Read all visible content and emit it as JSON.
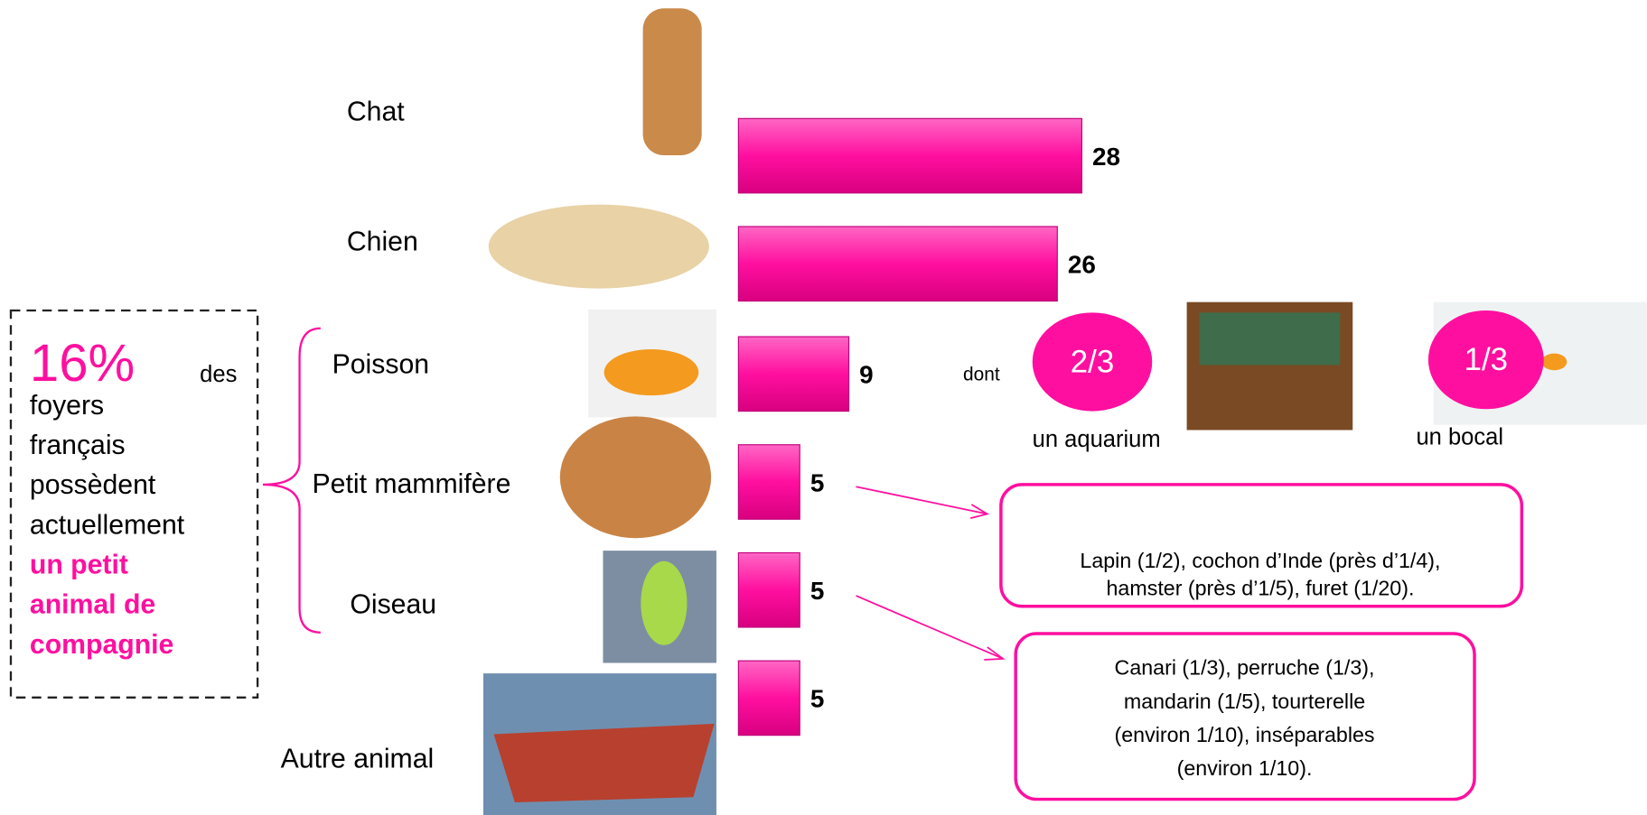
{
  "chart_data": {
    "type": "bar",
    "orientation": "horizontal",
    "categories": [
      "Chat",
      "Chien",
      "Poisson",
      "Petit mammifère",
      "Oiseau",
      "Autre animal"
    ],
    "values": [
      28,
      26,
      9,
      5,
      5,
      5
    ],
    "color": "#ff0f9f"
  },
  "callout": {
    "percent": "16%",
    "lines": [
      "des",
      "foyers",
      "français",
      "possèdent",
      "actuellement"
    ],
    "highlight_lines": [
      "un petit",
      "animal de",
      "compagnie"
    ]
  },
  "fish_breakdown": {
    "intro": "dont",
    "items": [
      {
        "share": "2/3",
        "label": "un aquarium"
      },
      {
        "share": "1/3",
        "label": "un bocal"
      }
    ]
  },
  "detail_boxes": [
    {
      "lines": [
        "Lapin (1/2), cochon d’Inde (près d’1/4),",
        "hamster (près d’1/5), furet (1/20)."
      ]
    },
    {
      "lines": [
        "Canari (1/3), perruche (1/3),",
        "mandarin (1/5), tourterelle",
        "(environ 1/10), inséparables",
        "(environ 1/10)."
      ]
    }
  ]
}
